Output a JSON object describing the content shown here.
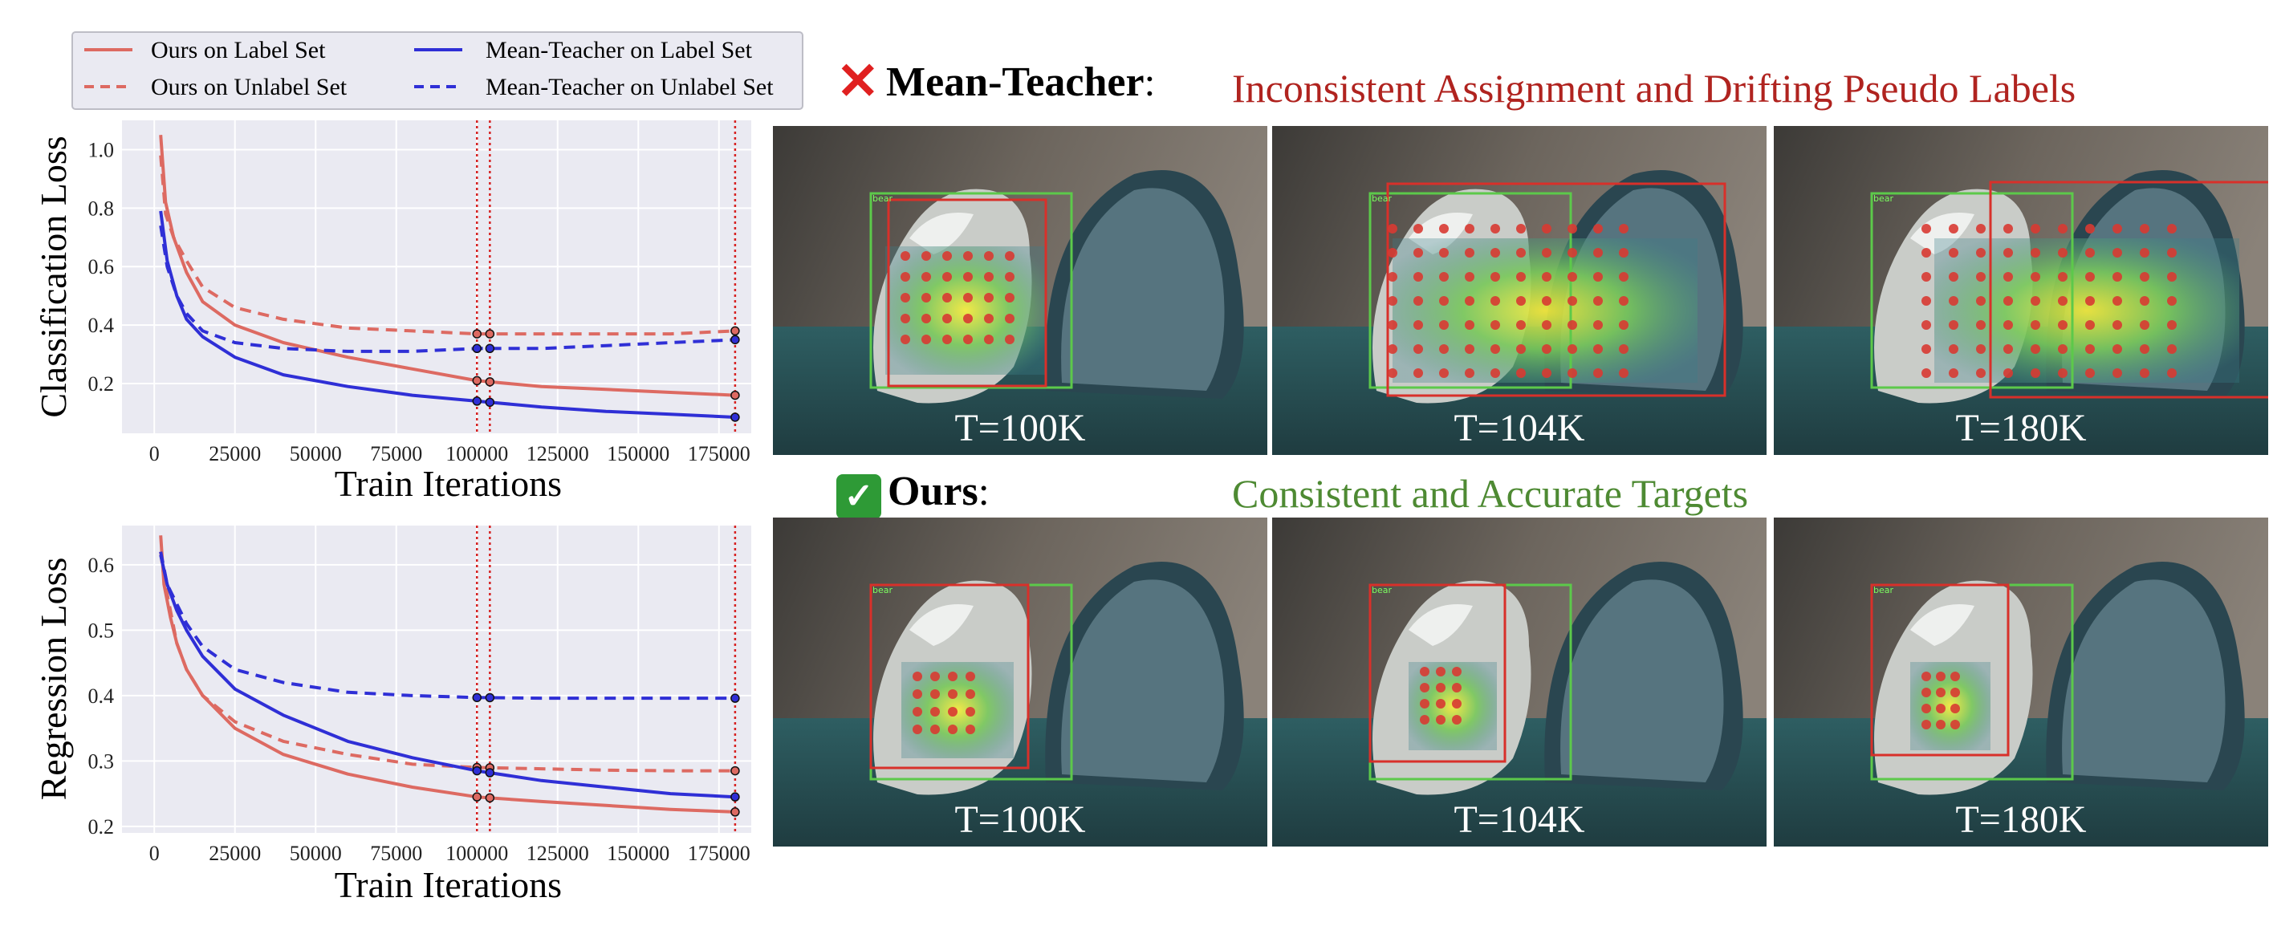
{
  "legend": {
    "items": [
      {
        "label": "Ours on Label Set",
        "color": "#dd6a62",
        "dash": false
      },
      {
        "label": "Ours on Unlabel Set",
        "color": "#dd6a62",
        "dash": true
      },
      {
        "label": "Mean-Teacher on Label Set",
        "color": "#2f2fd6",
        "dash": false
      },
      {
        "label": "Mean-Teacher on Unlabel Set",
        "color": "#2f2fd6",
        "dash": true
      }
    ]
  },
  "chart_data": [
    {
      "type": "line",
      "ylabel": "Classification Loss",
      "xlabel": "Train Iterations",
      "xlim": [
        -10000,
        185000
      ],
      "ylim": [
        0.03,
        1.1
      ],
      "xticks": [
        0,
        25000,
        50000,
        75000,
        100000,
        125000,
        150000,
        175000
      ],
      "yticks": [
        0.2,
        0.4,
        0.6,
        0.8,
        1.0
      ],
      "ytick_labels": [
        "0.2",
        "0.4",
        "0.6",
        "0.8",
        "1.0"
      ],
      "grid": true,
      "vlines": [
        100000,
        104000,
        180000
      ],
      "series": [
        {
          "name": "Ours on Label Set",
          "color": "#dd6a62",
          "dash": false,
          "x": [
            2000,
            3500,
            6000,
            10000,
            15000,
            25000,
            40000,
            60000,
            80000,
            100000,
            120000,
            140000,
            160000,
            180000
          ],
          "y": [
            1.05,
            0.82,
            0.7,
            0.58,
            0.48,
            0.4,
            0.34,
            0.29,
            0.25,
            0.21,
            0.19,
            0.18,
            0.17,
            0.16
          ]
        },
        {
          "name": "Ours on Unlabel Set",
          "color": "#dd6a62",
          "dash": true,
          "x": [
            2000,
            3500,
            6000,
            10000,
            15000,
            25000,
            40000,
            60000,
            80000,
            100000,
            120000,
            140000,
            160000,
            180000
          ],
          "y": [
            0.98,
            0.78,
            0.7,
            0.62,
            0.53,
            0.46,
            0.42,
            0.39,
            0.38,
            0.37,
            0.37,
            0.37,
            0.37,
            0.38
          ]
        },
        {
          "name": "Mean-Teacher on Label Set",
          "color": "#2f2fd6",
          "dash": false,
          "x": [
            2000,
            4000,
            7000,
            10000,
            15000,
            25000,
            40000,
            60000,
            80000,
            100000,
            120000,
            140000,
            160000,
            180000
          ],
          "y": [
            0.79,
            0.62,
            0.5,
            0.42,
            0.36,
            0.29,
            0.23,
            0.19,
            0.16,
            0.14,
            0.12,
            0.105,
            0.095,
            0.085
          ]
        },
        {
          "name": "Mean-Teacher on Unlabel Set",
          "color": "#2f2fd6",
          "dash": true,
          "x": [
            2000,
            4000,
            7000,
            10000,
            15000,
            25000,
            40000,
            60000,
            80000,
            100000,
            120000,
            140000,
            160000,
            180000
          ],
          "y": [
            0.74,
            0.6,
            0.5,
            0.44,
            0.38,
            0.34,
            0.32,
            0.31,
            0.31,
            0.32,
            0.32,
            0.33,
            0.34,
            0.35
          ]
        }
      ]
    },
    {
      "type": "line",
      "ylabel": "Regression Loss",
      "xlabel": "Train Iterations",
      "xlim": [
        -10000,
        185000
      ],
      "ylim": [
        0.19,
        0.66
      ],
      "xticks": [
        0,
        25000,
        50000,
        75000,
        100000,
        125000,
        150000,
        175000
      ],
      "yticks": [
        0.2,
        0.3,
        0.4,
        0.5,
        0.6
      ],
      "ytick_labels": [
        "0.2",
        "0.3",
        "0.4",
        "0.5",
        "0.6"
      ],
      "grid": true,
      "vlines": [
        100000,
        104000,
        180000
      ],
      "series": [
        {
          "name": "Ours on Label Set",
          "color": "#dd6a62",
          "dash": false,
          "x": [
            2000,
            3000,
            5000,
            7000,
            10000,
            15000,
            25000,
            40000,
            60000,
            80000,
            100000,
            120000,
            140000,
            160000,
            180000
          ],
          "y": [
            0.645,
            0.57,
            0.52,
            0.48,
            0.44,
            0.4,
            0.35,
            0.31,
            0.28,
            0.26,
            0.245,
            0.238,
            0.232,
            0.226,
            0.222
          ]
        },
        {
          "name": "Ours on Unlabel Set",
          "color": "#dd6a62",
          "dash": true,
          "x": [
            2000,
            3000,
            5000,
            7000,
            10000,
            15000,
            25000,
            40000,
            60000,
            80000,
            100000,
            120000,
            140000,
            160000,
            180000
          ],
          "y": [
            0.62,
            0.58,
            0.53,
            0.48,
            0.44,
            0.4,
            0.36,
            0.33,
            0.31,
            0.295,
            0.29,
            0.288,
            0.286,
            0.285,
            0.285
          ]
        },
        {
          "name": "Mean-Teacher on Label Set",
          "color": "#2f2fd6",
          "dash": false,
          "x": [
            2000,
            4000,
            7000,
            10000,
            15000,
            25000,
            40000,
            60000,
            80000,
            100000,
            120000,
            140000,
            160000,
            180000
          ],
          "y": [
            0.615,
            0.57,
            0.53,
            0.5,
            0.46,
            0.41,
            0.37,
            0.33,
            0.305,
            0.285,
            0.27,
            0.26,
            0.25,
            0.245
          ]
        },
        {
          "name": "Mean-Teacher on Unlabel Set",
          "color": "#2f2fd6",
          "dash": true,
          "x": [
            2000,
            4000,
            7000,
            10000,
            15000,
            25000,
            40000,
            60000,
            80000,
            100000,
            120000,
            140000,
            160000,
            180000
          ],
          "y": [
            0.62,
            0.57,
            0.54,
            0.51,
            0.475,
            0.44,
            0.42,
            0.405,
            0.4,
            0.397,
            0.396,
            0.396,
            0.396,
            0.396
          ]
        }
      ]
    }
  ],
  "header_top": {
    "icon": "cross-mark-icon",
    "icon_glyph": "✕",
    "icon_color": "#e02020",
    "method": "Mean-Teacher",
    "colon": ":",
    "caption": "Inconsistent Assignment and Drifting Pseudo Labels",
    "caption_color": "#b0231f"
  },
  "header_bottom": {
    "icon": "check-mark-icon",
    "icon_glyph": "✓",
    "icon_color": "#2e9a36",
    "method": "Ours",
    "colon": ":",
    "caption": "Consistent and Accurate Targets",
    "caption_color": "#4e8a33"
  },
  "panels_top": [
    {
      "label": "T=100K"
    },
    {
      "label": "T=104K"
    },
    {
      "label": "T=180K"
    }
  ],
  "panels_bottom": [
    {
      "label": "T=100K"
    },
    {
      "label": "T=104K"
    },
    {
      "label": "T=180K"
    }
  ],
  "box_tag": "bear"
}
